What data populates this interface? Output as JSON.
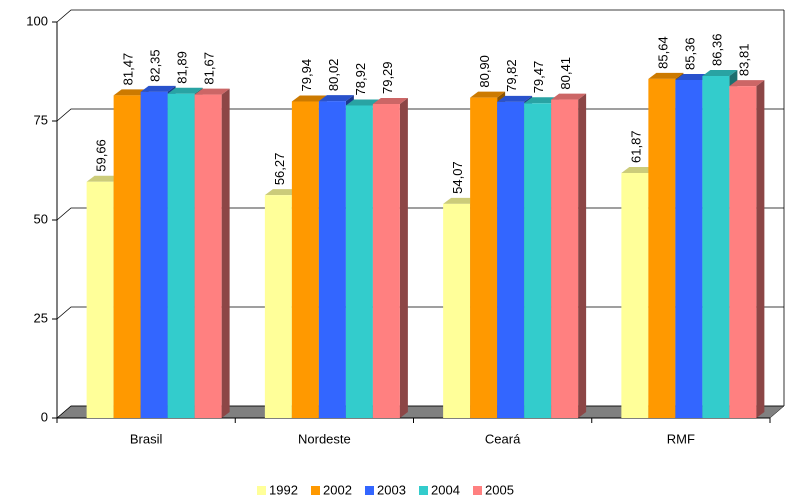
{
  "chart_data": {
    "type": "bar3d",
    "categories": [
      "Brasil",
      "Nordeste",
      "Ceará",
      "RMF"
    ],
    "series": [
      {
        "name": "1992",
        "color": "#ffff99",
        "values": [
          59.66,
          56.27,
          54.07,
          61.87
        ],
        "value_labels": [
          "59,66",
          "56,27",
          "54,07",
          "61,87"
        ]
      },
      {
        "name": "2002",
        "color": "#ff9900",
        "values": [
          81.47,
          79.94,
          80.9,
          85.64
        ],
        "value_labels": [
          "81,47",
          "79,94",
          "80,90",
          "85,64"
        ]
      },
      {
        "name": "2003",
        "color": "#3366ff",
        "values": [
          82.35,
          80.02,
          79.82,
          85.36
        ],
        "value_labels": [
          "82,35",
          "80,02",
          "79,82",
          "85,36"
        ]
      },
      {
        "name": "2004",
        "color": "#33cccc",
        "values": [
          81.89,
          78.92,
          79.47,
          86.36
        ],
        "value_labels": [
          "81,89",
          "78,92",
          "79,47",
          "86,36"
        ]
      },
      {
        "name": "2005",
        "color": "#ff8080",
        "values": [
          81.67,
          79.29,
          80.41,
          83.81
        ],
        "value_labels": [
          "81,67",
          "79,29",
          "80,41",
          "83,81"
        ]
      }
    ],
    "ylim": [
      0,
      100
    ],
    "yticks": [
      0,
      25,
      50,
      75,
      100
    ],
    "grid": true,
    "legend": "bottom"
  }
}
